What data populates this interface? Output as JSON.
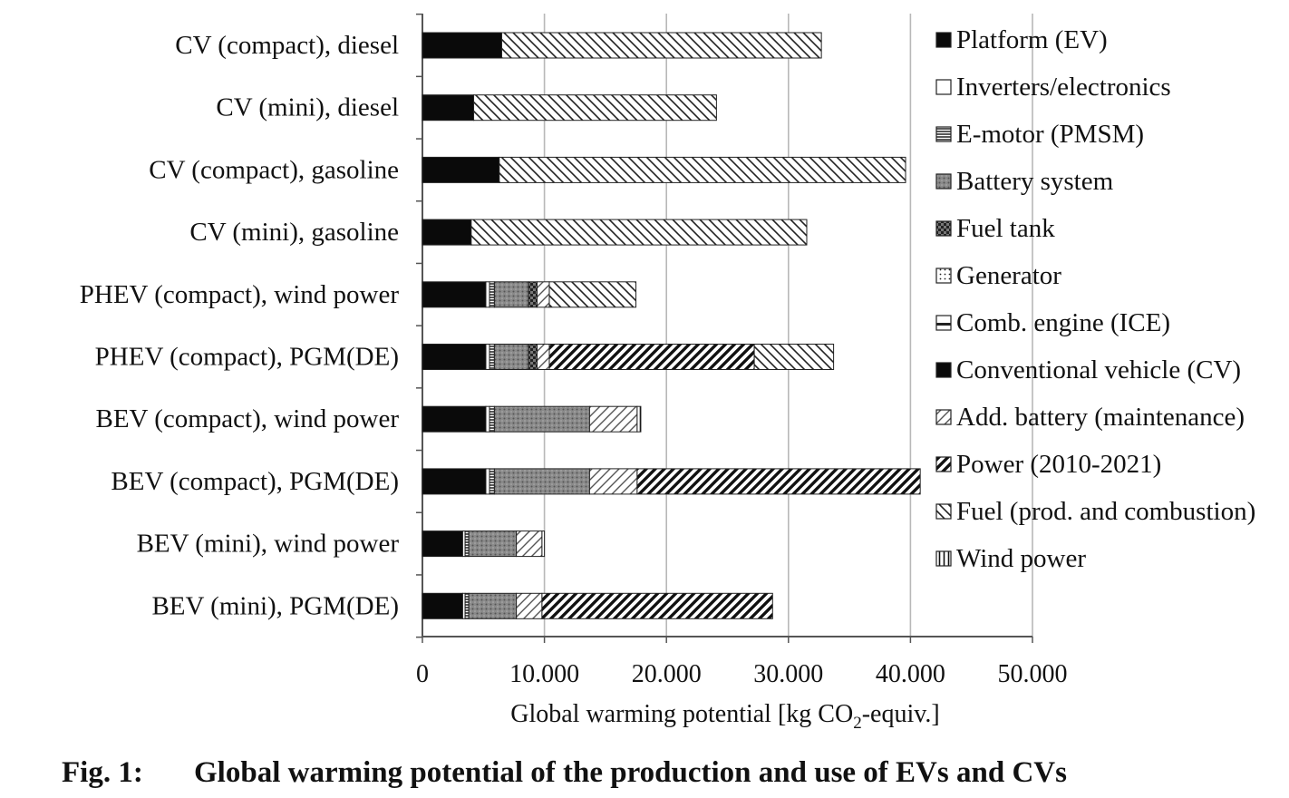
{
  "chart_data": {
    "type": "bar",
    "orientation": "horizontal",
    "stacked": true,
    "categories": [
      "CV (compact), diesel",
      "CV (mini), diesel",
      "CV (compact), gasoline",
      "CV (mini), gasoline",
      "PHEV (compact), wind power",
      "PHEV (compact), PGM(DE)",
      "BEV (compact), wind power",
      "BEV (compact), PGM(DE)",
      "BEV (mini), wind power",
      "BEV (mini), PGM(DE)"
    ],
    "series": [
      {
        "name": "Platform (EV)",
        "pattern": "solid-black",
        "values": [
          0,
          0,
          0,
          0,
          5200,
          5200,
          5200,
          5200,
          3300,
          3300
        ]
      },
      {
        "name": "Inverters/electronics",
        "pattern": "white",
        "values": [
          0,
          0,
          0,
          0,
          300,
          300,
          300,
          300,
          200,
          200
        ]
      },
      {
        "name": "E-motor (PMSM)",
        "pattern": "horizontal-lines",
        "values": [
          0,
          0,
          0,
          0,
          400,
          400,
          400,
          400,
          300,
          300
        ]
      },
      {
        "name": "Battery system",
        "pattern": "gray-dots",
        "values": [
          0,
          0,
          0,
          0,
          2800,
          2800,
          7800,
          7800,
          3900,
          3900
        ]
      },
      {
        "name": "Fuel tank",
        "pattern": "dark-checker",
        "values": [
          0,
          0,
          0,
          0,
          700,
          700,
          0,
          0,
          0,
          0
        ]
      },
      {
        "name": "Generator",
        "pattern": "dotted",
        "values": [
          0,
          0,
          0,
          0,
          0,
          0,
          0,
          0,
          0,
          0
        ]
      },
      {
        "name": "Comb. engine (ICE)",
        "pattern": "horizontal-band",
        "values": [
          0,
          0,
          0,
          0,
          0,
          0,
          0,
          0,
          0,
          0
        ]
      },
      {
        "name": "Conventional vehicle (CV)",
        "pattern": "solid-black",
        "values": [
          6500,
          4200,
          6300,
          4000,
          0,
          0,
          0,
          0,
          0,
          0
        ]
      },
      {
        "name": "Add. battery (maintenance)",
        "pattern": "light-diagonal",
        "values": [
          0,
          0,
          0,
          0,
          1000,
          1000,
          3900,
          3900,
          2100,
          2100
        ]
      },
      {
        "name": "Power (2010-2021)",
        "pattern": "heavy-diagonal",
        "values": [
          0,
          0,
          0,
          0,
          0,
          16800,
          0,
          23200,
          0,
          18900
        ]
      },
      {
        "name": "Fuel (prod. and combustion)",
        "pattern": "back-diagonal",
        "values": [
          26200,
          19900,
          33300,
          27500,
          7100,
          6500,
          0,
          0,
          0,
          0
        ]
      },
      {
        "name": "Wind power",
        "pattern": "vertical-lines",
        "values": [
          0,
          0,
          0,
          0,
          0,
          0,
          300,
          0,
          200,
          0
        ]
      }
    ],
    "xlim": [
      0,
      50000
    ],
    "xticks": [
      "0",
      "10.000",
      "20.000",
      "30.000",
      "40.000",
      "50.000"
    ],
    "xlabel_main": "Global warming potential [kg CO",
    "xlabel_sub": "2",
    "xlabel_end": "-equiv.]",
    "grid": "vertical",
    "legend_placement": "right"
  },
  "caption": {
    "number": "Fig. 1:",
    "text": "Global warming potential of the production and use of EVs and CVs"
  }
}
